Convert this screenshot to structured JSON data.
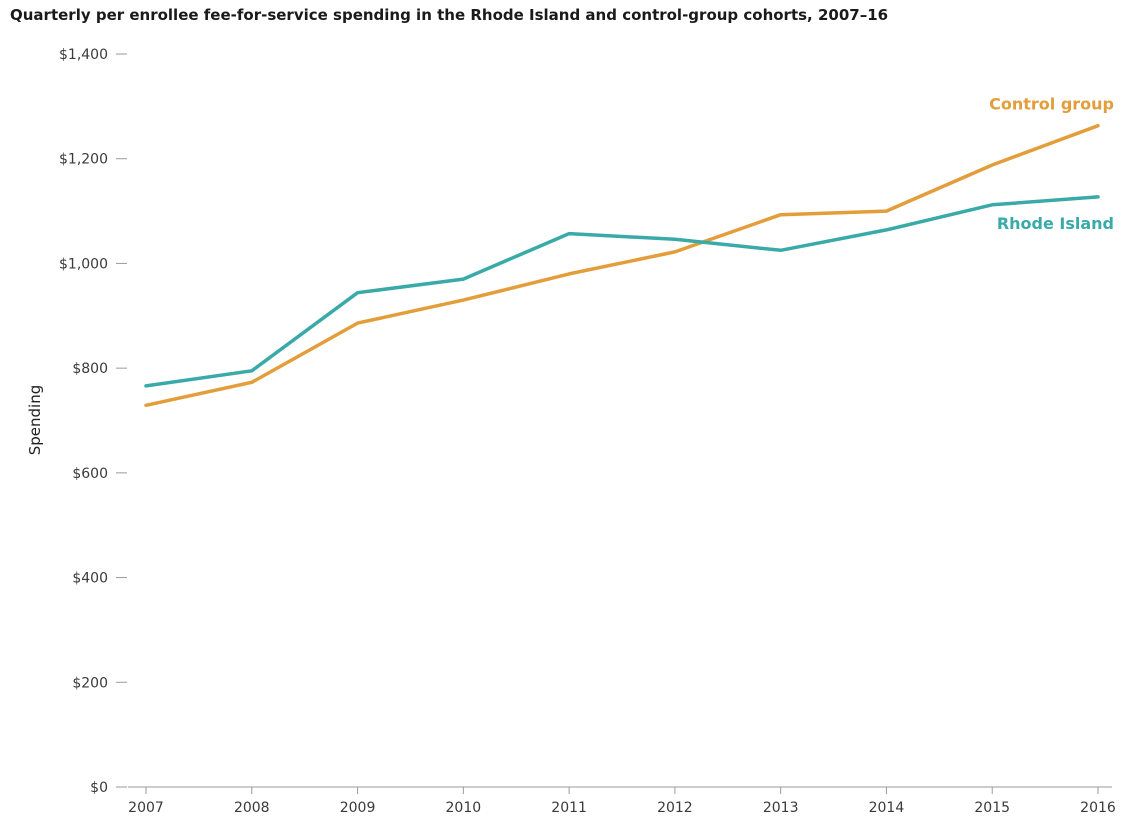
{
  "chart_data": {
    "type": "line",
    "title": "Quarterly per enrollee fee-for-service spending in the Rhode Island and control-group cohorts, 2007–16",
    "xlabel": "",
    "ylabel": "Spending",
    "x": [
      "2007",
      "2008",
      "2009",
      "2010",
      "2011",
      "2012",
      "2013",
      "2014",
      "2015",
      "2016"
    ],
    "ylim": [
      0,
      1400
    ],
    "yticks": [
      0,
      200,
      400,
      600,
      800,
      1000,
      1200,
      1400
    ],
    "ytick_labels": [
      "$0",
      "$200",
      "$400",
      "$600",
      "$800",
      "$1,000",
      "$1,200",
      "$1,400"
    ],
    "grid": false,
    "legend": "inline labels at line ends",
    "series": [
      {
        "name": "Control group",
        "color": "#E39D3A",
        "values": [
          729,
          773,
          886,
          930,
          980,
          1022,
          1093,
          1100,
          1188,
          1263
        ]
      },
      {
        "name": "Rhode Island",
        "color": "#3AAAA9",
        "values": [
          766,
          795,
          944,
          970,
          1057,
          1046,
          1025,
          1064,
          1112,
          1127
        ]
      }
    ]
  }
}
